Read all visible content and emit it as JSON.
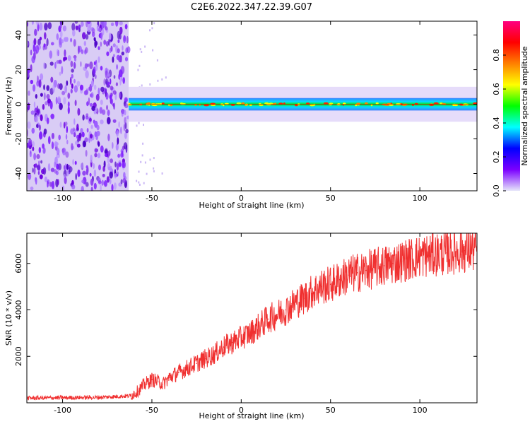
{
  "title": "C2E6.2022.347.22.39.G07",
  "chart_data": [
    {
      "type": "heatmap",
      "xlabel": "Height of straight line (km)",
      "ylabel": "Frequency (Hz)",
      "xlim": [
        -120,
        132
      ],
      "ylim": [
        -50,
        48
      ],
      "xticks": [
        -100,
        -50,
        0,
        50,
        100
      ],
      "yticks": [
        40,
        20,
        0,
        -20,
        -40
      ],
      "colorbar": {
        "label": "Normalized spectral amplitude",
        "range": [
          0.0,
          1.0
        ],
        "ticks": [
          0.0,
          0.2,
          0.4,
          0.6,
          0.8
        ],
        "colors": [
          "#e6e6fa",
          "#7b00ff",
          "#0000ff",
          "#00ffff",
          "#00ff00",
          "#ffff00",
          "#ff8000",
          "#ff0000",
          "#ff0080"
        ]
      },
      "regions": [
        {
          "kind": "noise",
          "x_range": [
            -120,
            -63
          ],
          "y_range": [
            -50,
            48
          ]
        },
        {
          "kind": "signal-band",
          "x_range": [
            -63,
            132
          ],
          "center_hz": 0,
          "width_hz": 4
        }
      ],
      "grid": false
    },
    {
      "type": "line",
      "xlabel": "Height of straight line (km)",
      "ylabel": "SNR (10 * v/v)",
      "xlim": [
        -120,
        132
      ],
      "ylim": [
        0,
        7300
      ],
      "xticks": [
        -100,
        -50,
        0,
        50,
        100
      ],
      "yticks": [
        2000,
        4000,
        6000
      ],
      "color": "#f03030",
      "series": [
        {
          "x": [
            -120,
            -100,
            -80,
            -62,
            -58,
            -54,
            -50,
            -46,
            -44,
            -40,
            -35,
            -30,
            -25,
            -20,
            -15,
            -10,
            -5,
            0,
            5,
            10,
            15,
            20,
            25,
            30,
            35,
            40,
            45,
            50,
            55,
            60,
            65,
            70,
            75,
            80,
            85,
            90,
            95,
            100,
            105,
            110,
            115,
            120,
            125,
            132
          ],
          "values": [
            200,
            220,
            230,
            300,
            500,
            800,
            1000,
            900,
            800,
            1100,
            1300,
            1500,
            1700,
            1900,
            2100,
            2400,
            2600,
            2800,
            3000,
            3300,
            3600,
            3800,
            4000,
            4300,
            4500,
            4800,
            5000,
            5100,
            5300,
            5500,
            5600,
            5700,
            5800,
            5900,
            6000,
            6100,
            6200,
            6300,
            6350,
            6400,
            6450,
            6500,
            6550,
            6600
          ]
        }
      ],
      "grid": false
    }
  ]
}
